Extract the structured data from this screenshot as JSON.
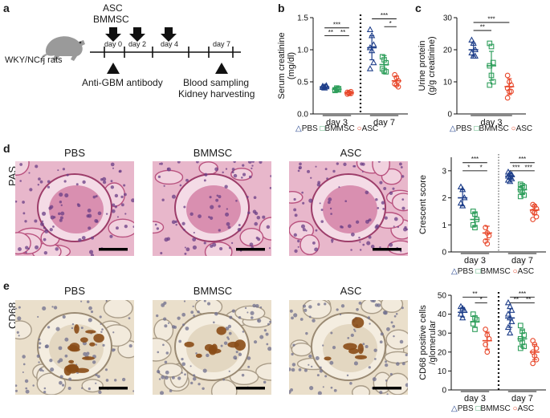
{
  "panel_letters": [
    "a",
    "b",
    "c",
    "d",
    "e"
  ],
  "schematic": {
    "treatments": [
      "ASC",
      "BMMSC"
    ],
    "rat_label": "WKY/NCrj rats",
    "days": [
      "day 0",
      "day 2",
      "day 4",
      "day 7"
    ],
    "antibody": "Anti-GBM antibody",
    "outcome": [
      "Blood sampling",
      "Kidney harvesting"
    ]
  },
  "legend_groups": [
    "PBS",
    "BMMSC",
    "ASC"
  ],
  "colors": {
    "PBS": "#1f3f8a",
    "BMMSC": "#2e9e5b",
    "ASC": "#e8472a",
    "pas_bg": "#e9b8cc",
    "cd68_bg": "#e9dcc4",
    "cd68_stain": "#8a4d17"
  },
  "micrographs": {
    "row_d_label": "PAS",
    "row_e_label": "CD68",
    "titles": [
      "PBS",
      "BMMSC",
      "ASC"
    ]
  },
  "chart_data": [
    {
      "id": "b",
      "type": "scatter",
      "ylabel": "Serum creatinine (mg/dl)",
      "ylabel_lines": [
        "Serum creatinine",
        "(mg/dl)"
      ],
      "ylim": [
        0,
        1.6
      ],
      "yticks": [
        "0.0",
        "0.5",
        "1.0",
        "1.5"
      ],
      "categories": [
        "day 3",
        "day 7"
      ],
      "divider_style": "dotted-bold",
      "series": [
        {
          "name": "PBS",
          "marker": "triangle",
          "values": [
            [
              0.44,
              0.45,
              0.47,
              0.46,
              0.43,
              0.45
            ],
            [
              1.4,
              1.3,
              1.15,
              1.1,
              1.05,
              0.85,
              0.75
            ]
          ],
          "mean": [
            0.45,
            1.1
          ],
          "sd": [
            0.03,
            0.2
          ]
        },
        {
          "name": "BMMSC",
          "marker": "square",
          "values": [
            [
              0.4,
              0.41,
              0.42,
              0.39,
              0.43,
              0.4
            ],
            [
              0.95,
              0.9,
              0.85,
              0.75,
              0.72,
              0.7
            ]
          ],
          "mean": [
            0.41,
            0.82
          ],
          "sd": [
            0.03,
            0.15
          ]
        },
        {
          "name": "ASC",
          "marker": "circle",
          "values": [
            [
              0.36,
              0.34,
              0.37,
              0.33,
              0.35,
              0.34
            ],
            [
              0.65,
              0.6,
              0.55,
              0.5,
              0.48,
              0.45
            ]
          ],
          "mean": [
            0.35,
            0.55
          ],
          "sd": [
            0.03,
            0.08
          ]
        }
      ],
      "significance": [
        {
          "group": 0,
          "from": 0,
          "to": 2,
          "label": "***",
          "y": 1.43
        },
        {
          "group": 0,
          "from": 0,
          "to": 1,
          "label": "**",
          "y": 1.3
        },
        {
          "group": 0,
          "from": 1,
          "to": 2,
          "label": "**",
          "y": 1.3
        },
        {
          "group": 1,
          "from": 0,
          "to": 2,
          "label": "***",
          "y": 1.58
        },
        {
          "group": 1,
          "from": 1,
          "to": 2,
          "label": "*",
          "y": 1.45
        }
      ]
    },
    {
      "id": "c",
      "type": "scatter",
      "ylabel": "Urine protein (g/g creatinine)",
      "ylabel_lines": [
        "Urine protein",
        "(g/g creatinine)"
      ],
      "ylim": [
        0,
        30
      ],
      "yticks": [
        "0",
        "10",
        "20",
        "30"
      ],
      "categories": [
        "day 3"
      ],
      "series": [
        {
          "name": "PBS",
          "marker": "triangle",
          "values": [
            [
              23,
              22,
              20,
              19,
              18,
              18
            ]
          ],
          "mean": [
            20
          ],
          "sd": [
            2
          ]
        },
        {
          "name": "BMMSC",
          "marker": "square",
          "values": [
            [
              22,
              21,
              16,
              15,
              12,
              10,
              9
            ]
          ],
          "mean": [
            15
          ],
          "sd": [
            4.5
          ]
        },
        {
          "name": "ASC",
          "marker": "circle",
          "values": [
            [
              12,
              10,
              9,
              8,
              7,
              7,
              5
            ]
          ],
          "mean": [
            8.5
          ],
          "sd": [
            2.5
          ]
        }
      ],
      "significance": [
        {
          "group": 0,
          "from": 0,
          "to": 2,
          "label": "***",
          "y": 28.5
        },
        {
          "group": 0,
          "from": 0,
          "to": 1,
          "label": "**",
          "y": 26
        }
      ]
    },
    {
      "id": "d",
      "type": "scatter",
      "ylabel": "Crescent score",
      "ylim": [
        0,
        3.5
      ],
      "yticks": [
        "0",
        "1",
        "2",
        "3"
      ],
      "categories": [
        "day 3",
        "day 7"
      ],
      "divider_style": "dotted-thin",
      "series": [
        {
          "name": "PBS",
          "marker": "triangle",
          "values": [
            [
              2.4,
              2.3,
              2.0,
              1.8,
              1.7
            ],
            [
              2.95,
              2.9,
              2.85,
              2.8,
              2.75,
              2.7,
              2.65,
              2.6
            ]
          ],
          "mean": [
            2.0,
            2.8
          ],
          "sd": [
            0.3,
            0.1
          ]
        },
        {
          "name": "BMMSC",
          "marker": "square",
          "values": [
            [
              1.5,
              1.4,
              1.2,
              1.0,
              0.9
            ],
            [
              2.5,
              2.45,
              2.4,
              2.3,
              2.2,
              2.1,
              2.05
            ]
          ],
          "mean": [
            1.2,
            2.3
          ],
          "sd": [
            0.25,
            0.15
          ]
        },
        {
          "name": "ASC",
          "marker": "circle",
          "values": [
            [
              0.9,
              0.7,
              0.6,
              0.4,
              0.3
            ],
            [
              1.75,
              1.7,
              1.6,
              1.5,
              1.45,
              1.3,
              1.2
            ]
          ],
          "mean": [
            0.7,
            1.55
          ],
          "sd": [
            0.25,
            0.18
          ]
        }
      ],
      "significance": [
        {
          "group": 0,
          "from": 0,
          "to": 2,
          "label": "***",
          "y": 3.3
        },
        {
          "group": 0,
          "from": 0,
          "to": 1,
          "label": "*",
          "y": 3.0
        },
        {
          "group": 0,
          "from": 1,
          "to": 2,
          "label": "*",
          "y": 3.0
        },
        {
          "group": 1,
          "from": 0,
          "to": 2,
          "label": "***",
          "y": 3.3
        },
        {
          "group": 1,
          "from": 0,
          "to": 1,
          "label": "***",
          "y": 3.0
        },
        {
          "group": 1,
          "from": 1,
          "to": 2,
          "label": "***",
          "y": 3.0
        }
      ]
    },
    {
      "id": "e",
      "type": "scatter",
      "ylabel": "CD68 positive cells /glomerular",
      "ylabel_lines": [
        "CD68 positive cells",
        "/glomerular"
      ],
      "ylim": [
        0,
        50
      ],
      "yticks": [
        "0",
        "10",
        "20",
        "30",
        "40",
        "50"
      ],
      "categories": [
        "day 3",
        "day 7"
      ],
      "divider_style": "dotted-bold",
      "series": [
        {
          "name": "PBS",
          "marker": "triangle",
          "values": [
            [
              44,
              43,
              42,
              40,
              38
            ],
            [
              46,
              44,
              42,
              40,
              38,
              36,
              33,
              30
            ]
          ],
          "mean": [
            41,
            38
          ],
          "sd": [
            2.5,
            5
          ]
        },
        {
          "name": "BMMSC",
          "marker": "square",
          "values": [
            [
              40,
              38,
              37,
              35,
              32
            ],
            [
              34,
              31,
              29,
              27,
              25,
              23,
              22
            ]
          ],
          "mean": [
            36,
            27
          ],
          "sd": [
            3,
            4.5
          ]
        },
        {
          "name": "ASC",
          "marker": "circle",
          "values": [
            [
              32,
              29,
              27,
              24,
              20
            ],
            [
              26,
              24,
              22,
              20,
              18,
              16,
              14
            ]
          ],
          "mean": [
            26,
            20
          ],
          "sd": [
            4.5,
            4
          ]
        }
      ],
      "significance": [
        {
          "group": 0,
          "from": 0,
          "to": 2,
          "label": "**",
          "y": 49
        },
        {
          "group": 0,
          "from": 1,
          "to": 2,
          "label": "*",
          "y": 46
        },
        {
          "group": 1,
          "from": 0,
          "to": 2,
          "label": "***",
          "y": 49
        },
        {
          "group": 1,
          "from": 0,
          "to": 1,
          "label": "**",
          "y": 46
        },
        {
          "group": 1,
          "from": 1,
          "to": 2,
          "label": "**",
          "y": 46
        }
      ]
    }
  ]
}
